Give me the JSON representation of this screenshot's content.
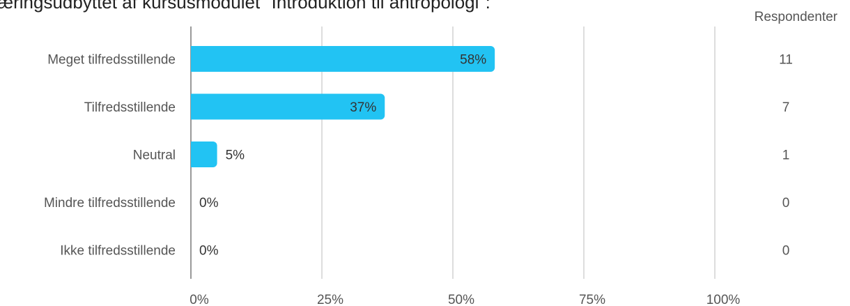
{
  "title": "æringsudbyttet af kursusmodulet \"Introduktion til antropologi\":",
  "respondents_header": "Respondenter",
  "colors": {
    "bar": "#22c3f3",
    "grid": "#bbbbbb",
    "axis": "#999999"
  },
  "chart_data": {
    "type": "bar",
    "orientation": "horizontal",
    "title": "æringsudbyttet af kursusmodulet \"Introduktion til antropologi\":",
    "categories": [
      "Meget tilfredsstillende",
      "Tilfredsstillende",
      "Neutral",
      "Mindre tilfredsstillende",
      "Ikke tilfredsstillende"
    ],
    "values": [
      58,
      37,
      5,
      0,
      0
    ],
    "value_labels": [
      "58%",
      "37%",
      "5%",
      "0%",
      "0%"
    ],
    "respondents": [
      11,
      7,
      1,
      0,
      0
    ],
    "xlim": [
      0,
      100
    ],
    "xticks": [
      "0%",
      "25%",
      "50%",
      "75%",
      "100%"
    ],
    "grid": true
  }
}
